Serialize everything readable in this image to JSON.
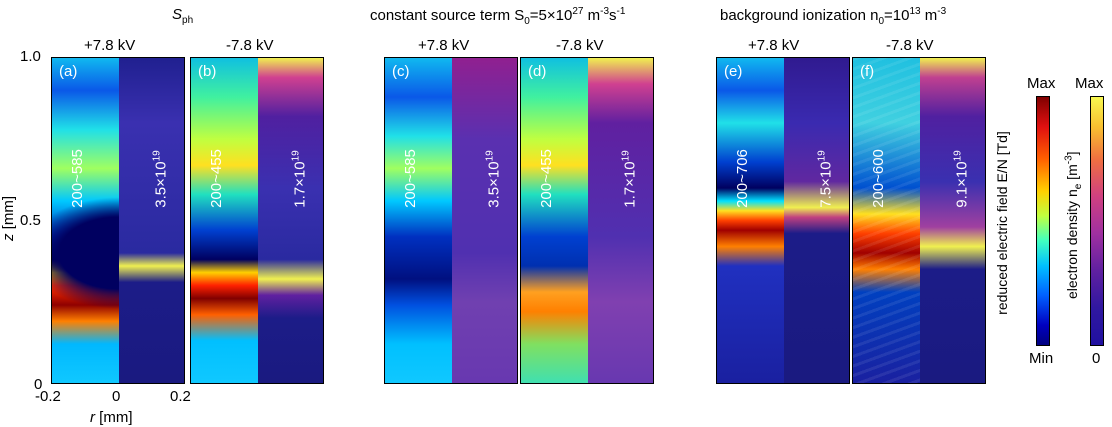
{
  "titles": {
    "group1": "S",
    "group1_sub": "ph",
    "group2": "constant source term S",
    "group2_sub": "0",
    "group2_rest": "=5×10",
    "group2_sup": "27",
    "group2_unit": " m",
    "group2_unit_sup": "-3",
    "group2_unit2": "s",
    "group2_unit2_sup": "-1",
    "group3": "background ionization n",
    "group3_sub": "0",
    "group3_rest": "=10",
    "group3_sup": "13",
    "group3_unit": " m",
    "group3_unit_sup": "-3"
  },
  "voltages": [
    "+7.8 kV",
    "-7.8 kV",
    "+7.8 kV",
    "-7.8 kV",
    "+7.8 kV",
    "-7.8 kV"
  ],
  "panels": [
    {
      "label": "(a)",
      "range": "200~585",
      "density": "3.5×10",
      "density_exp": "19"
    },
    {
      "label": "(b)",
      "range": "200~455",
      "density": "1.7×10",
      "density_exp": "19"
    },
    {
      "label": "(c)",
      "range": "200~585",
      "density": "3.5×10",
      "density_exp": "19"
    },
    {
      "label": "(d)",
      "range": "200~455",
      "density": "1.7×10",
      "density_exp": "19"
    },
    {
      "label": "(e)",
      "range": "200~706",
      "density": "7.5×10",
      "density_exp": "19"
    },
    {
      "label": "(f)",
      "range": "200~600",
      "density": "9.1×10",
      "density_exp": "19"
    }
  ],
  "axes": {
    "y_ticks": [
      "1.0",
      "0.5",
      "0"
    ],
    "x_ticks": [
      "-0.2",
      "0",
      "0.2"
    ],
    "y_label_var": "z",
    "y_label_unit": " [mm]",
    "x_label_var": "r",
    "x_label_unit": " [mm]"
  },
  "colorbars": {
    "field_max": "Max",
    "field_min": "Min",
    "field_title": "reduced electric field E/N [Td]",
    "density_max": "Max",
    "density_min": "0",
    "density_title": "electron density n",
    "density_title_sub": "e",
    "density_title_unit": " [m",
    "density_title_sup": "-3",
    "density_title_end": "]"
  }
}
